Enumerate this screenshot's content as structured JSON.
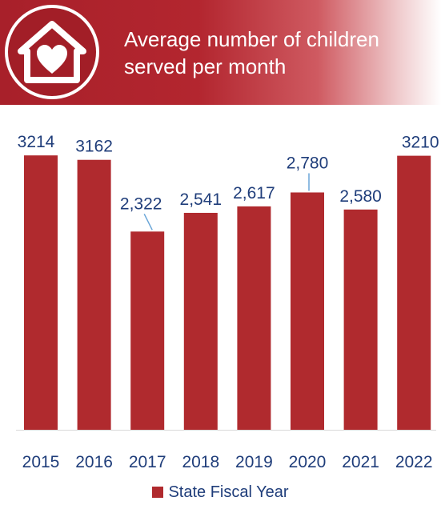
{
  "header": {
    "title": "Average number of children\nserved per month",
    "icon": "house-heart-icon"
  },
  "chart_data": {
    "type": "bar",
    "categories": [
      "2015",
      "2016",
      "2017",
      "2018",
      "2019",
      "2020",
      "2021",
      "2022"
    ],
    "values": [
      3214,
      3162,
      2322,
      2541,
      2617,
      2780,
      2580,
      3210
    ],
    "data_labels": [
      "3214",
      "3162",
      "2,322",
      "2,541",
      "2,617",
      "2,780",
      "2,580",
      "3210"
    ],
    "series": [
      {
        "name": "State Fiscal Year",
        "values": [
          3214,
          3162,
          2322,
          2541,
          2617,
          2780,
          2580,
          3210
        ]
      }
    ],
    "legend": "bottom-center",
    "grid": false,
    "ylim": [
      0,
      3300
    ],
    "colors": {
      "bar": "#b02a2e",
      "label": "#1f3d7a",
      "banner": "#a8202a"
    }
  }
}
